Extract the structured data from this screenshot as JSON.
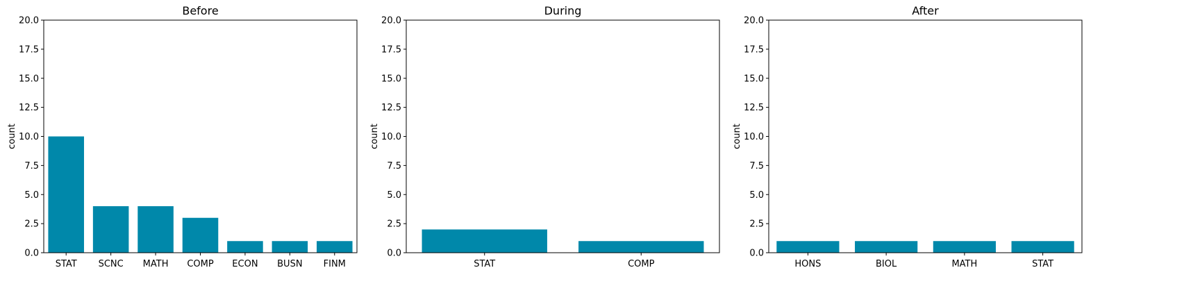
{
  "chart_data": [
    {
      "type": "bar",
      "title": "Before",
      "xlabel": "",
      "ylabel": "count",
      "ylim": [
        0,
        20
      ],
      "yticks": [
        "0.0",
        "2.5",
        "5.0",
        "7.5",
        "10.0",
        "12.5",
        "15.0",
        "17.5",
        "20.0"
      ],
      "categories": [
        "STAT",
        "SCNC",
        "MATH",
        "COMP",
        "ECON",
        "BUSN",
        "FINM"
      ],
      "values": [
        10,
        4,
        4,
        3,
        1,
        1,
        1
      ],
      "grid": false,
      "color": "#0088aa"
    },
    {
      "type": "bar",
      "title": "During",
      "xlabel": "",
      "ylabel": "count",
      "ylim": [
        0,
        20
      ],
      "yticks": [
        "0.0",
        "2.5",
        "5.0",
        "7.5",
        "10.0",
        "12.5",
        "15.0",
        "17.5",
        "20.0"
      ],
      "categories": [
        "STAT",
        "COMP"
      ],
      "values": [
        2,
        1
      ],
      "grid": false,
      "color": "#0088aa"
    },
    {
      "type": "bar",
      "title": "After",
      "xlabel": "",
      "ylabel": "count",
      "ylim": [
        0,
        20
      ],
      "yticks": [
        "0.0",
        "2.5",
        "5.0",
        "7.5",
        "10.0",
        "12.5",
        "15.0",
        "17.5",
        "20.0"
      ],
      "categories": [
        "HONS",
        "BIOL",
        "MATH",
        "STAT"
      ],
      "values": [
        1,
        1,
        1,
        1
      ],
      "grid": false,
      "color": "#0088aa"
    }
  ]
}
